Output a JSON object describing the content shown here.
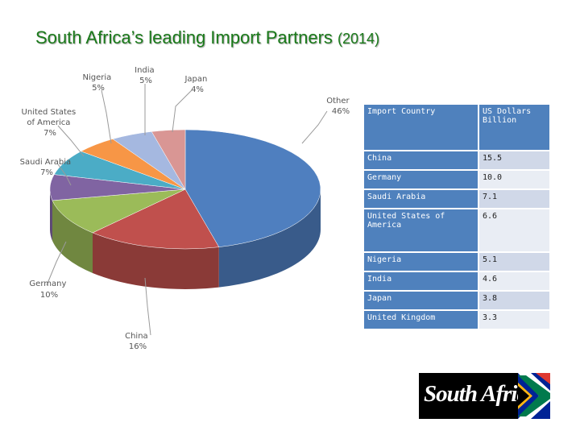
{
  "title": {
    "main": "South Africa’s leading Import Partners",
    "year": "(2014)"
  },
  "chart_data": {
    "type": "pie",
    "title": "",
    "slices": [
      {
        "name": "Other",
        "value": 46,
        "label": "46%",
        "color": "#4f7fbf"
      },
      {
        "name": "China",
        "value": 16,
        "label": "16%",
        "color": "#c0504d"
      },
      {
        "name": "Germany",
        "value": 10,
        "label": "10%",
        "color": "#9bbb59"
      },
      {
        "name": "Saudi Arabia",
        "value": 7,
        "label": "7%",
        "color": "#8064a2"
      },
      {
        "name": "United States of America",
        "value": 7,
        "label": "7%",
        "color": "#4bacc6"
      },
      {
        "name": "Nigeria",
        "value": 5,
        "label": "5%",
        "color": "#f79646"
      },
      {
        "name": "India",
        "value": 5,
        "label": "5%",
        "color": "#a5b8e0"
      },
      {
        "name": "Japan",
        "value": 4,
        "label": "4%",
        "color": "#d99694"
      }
    ],
    "labels": {
      "other": [
        "Other",
        "46%"
      ],
      "china": [
        "China",
        "16%"
      ],
      "germany": [
        "Germany",
        "10%"
      ],
      "saudi": [
        "Saudi Arabia",
        "7%"
      ],
      "usa": [
        "United States",
        "of America",
        "7%"
      ],
      "nigeria": [
        "Nigeria",
        "5%"
      ],
      "india": [
        "India",
        "5%"
      ],
      "japan": [
        "Japan",
        "4%"
      ]
    }
  },
  "table": {
    "headers": [
      "Import Country",
      "US Dollars",
      "Billion"
    ],
    "rows": [
      {
        "country": "China",
        "value": "15.5"
      },
      {
        "country": "Germany",
        "value": "10.0"
      },
      {
        "country": "Saudi Arabia",
        "value": "7.1"
      },
      {
        "country": "United States of America",
        "value": "6.6"
      },
      {
        "country": "Nigeria",
        "value": "5.1"
      },
      {
        "country": "India",
        "value": "4.6"
      },
      {
        "country": "Japan",
        "value": "3.8"
      },
      {
        "country": "United Kingdom",
        "value": "3.3"
      }
    ]
  },
  "logo": {
    "text": "South Africa",
    "colors": {
      "green": "#007a4d",
      "gold": "#ffb612",
      "red": "#de3831",
      "blue": "#002395"
    }
  }
}
